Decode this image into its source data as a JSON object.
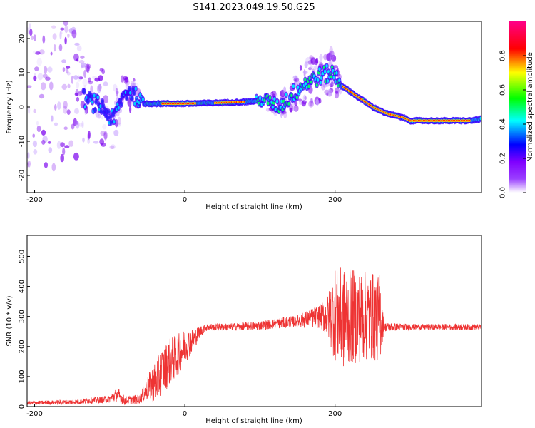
{
  "title": "S141.2023.049.19.50.G25",
  "colorbar": {
    "label": "Normalized spectral amplitude",
    "ticks": [
      "0.0",
      "0.2",
      "0.4",
      "0.6",
      "0.8"
    ],
    "tick_values": [
      0.0,
      0.2,
      0.4,
      0.6,
      0.8
    ],
    "range": [
      0,
      1
    ],
    "colors": [
      "#ffffff",
      "#7f00ff",
      "#0000ff",
      "#00ffff",
      "#00ff00",
      "#ffff00",
      "#ff0000",
      "#ff00ff"
    ]
  },
  "chart_data": [
    {
      "type": "heatmap",
      "xlabel": "Height of straight line (km)",
      "ylabel": "Frequency (Hz)",
      "xlim": [
        -210,
        395
      ],
      "ylim": [
        -25,
        25
      ],
      "xticks": [
        -200,
        0,
        200
      ],
      "yticks": [
        -20,
        -10,
        0,
        10,
        20
      ],
      "ridge": {
        "x": [
          -210,
          -180,
          -150,
          -130,
          -110,
          -95,
          -85,
          -75,
          -65,
          -55,
          -45,
          -30,
          0,
          40,
          80,
          110,
          125,
          140,
          160,
          180,
          195,
          205,
          210,
          230,
          250,
          270,
          290,
          300,
          340,
          380,
          395
        ],
        "y": [
          10,
          6,
          4,
          2,
          0,
          -4,
          2,
          5,
          3,
          1,
          1,
          1,
          1,
          1.2,
          1.5,
          2,
          0,
          3,
          7,
          9,
          10,
          8,
          6,
          3,
          0,
          -2,
          -3,
          -4,
          -4,
          -4,
          -3.5
        ],
        "noise_spread": [
          25,
          22,
          18,
          12,
          10,
          8,
          6,
          5,
          4,
          2,
          1.5,
          1,
          0.8,
          1,
          1.5,
          2.5,
          3,
          4,
          6,
          7,
          6,
          4,
          1,
          0.8,
          0.6,
          0.6,
          0.6,
          0.8,
          1,
          1,
          1
        ]
      }
    },
    {
      "type": "line",
      "color": "#ee3333",
      "xlabel": "Height of straight line (km)",
      "ylabel": "SNR (10 * v/v)",
      "xlim": [
        -210,
        395
      ],
      "ylim": [
        0,
        570
      ],
      "xticks": [
        -200,
        0,
        200
      ],
      "yticks": [
        0,
        100,
        200,
        300,
        400,
        500
      ],
      "series": [
        {
          "x": [
            -210,
            -150,
            -100,
            -90,
            -80,
            -60,
            -50,
            -40,
            -30,
            -20,
            -10,
            0,
            10,
            20,
            30,
            60,
            100,
            150,
            180,
            190,
            200,
            210,
            220,
            240,
            260,
            265,
            300,
            350,
            395
          ],
          "y": [
            12,
            15,
            25,
            40,
            20,
            25,
            60,
            80,
            120,
            150,
            170,
            200,
            220,
            250,
            265,
            265,
            270,
            285,
            300,
            300,
            310,
            290,
            300,
            300,
            300,
            265,
            265,
            265,
            265
          ],
          "noise_amp": [
            6,
            8,
            12,
            25,
            15,
            15,
            40,
            70,
            80,
            80,
            70,
            60,
            40,
            20,
            12,
            12,
            15,
            20,
            40,
            70,
            160,
            170,
            160,
            150,
            150,
            15,
            10,
            10,
            10
          ]
        }
      ]
    }
  ]
}
